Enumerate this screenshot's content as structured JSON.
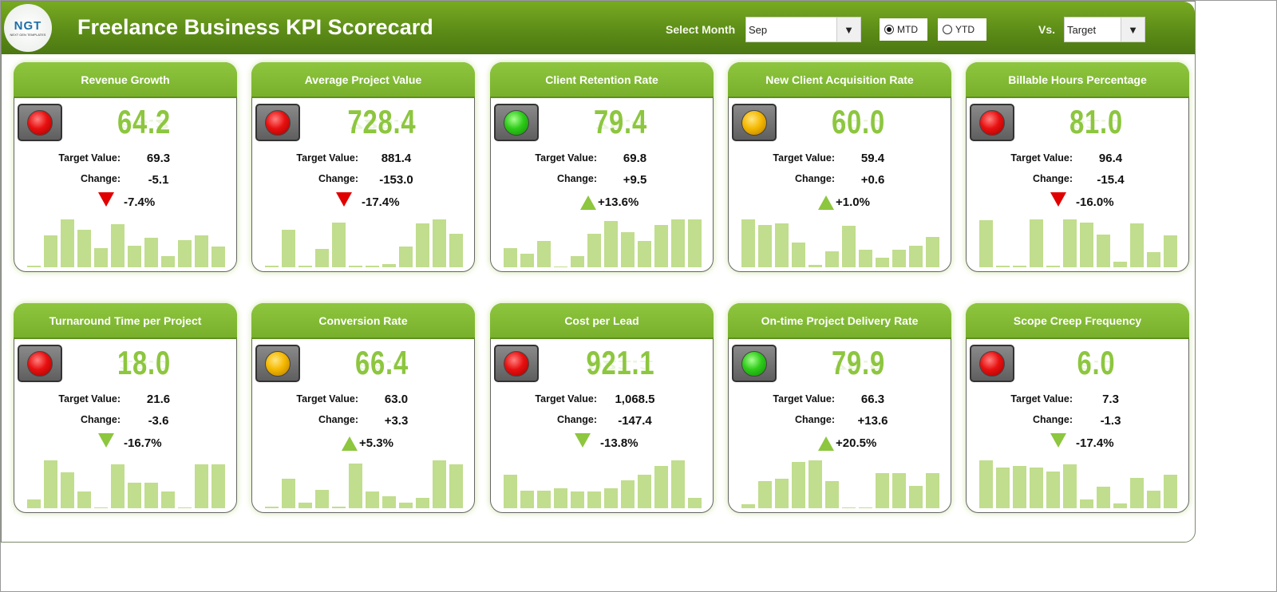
{
  "header": {
    "logo_text": "NGT",
    "logo_sub": "NEXT GEN TEMPLATES",
    "title": "Freelance Business KPI Scorecard",
    "select_month_label": "Select Month",
    "month_value": "Sep",
    "mtd_label": "MTD",
    "ytd_label": "YTD",
    "mode_selected": "MTD",
    "vs_label": "Vs.",
    "vs_value": "Target",
    "dropdown_icon": "triangle-down"
  },
  "labels": {
    "target": "Target Value:",
    "change": "Change:"
  },
  "colors": {
    "red": "#e81010",
    "amber": "#f5b800",
    "green": "#2ecc1a",
    "arrow_red": "#e00000",
    "arrow_green": "#8dc63f"
  },
  "cards": [
    {
      "title": "Revenue Growth",
      "value": "64.2",
      "target": "69.3",
      "change": "-5.1",
      "pct": "-7.4%",
      "light": "red",
      "arrow": "down",
      "arrow_color": "arrow_red",
      "trend": [
        2,
        38,
        57,
        45,
        23,
        51,
        26,
        35,
        13,
        32,
        38,
        25
      ]
    },
    {
      "title": "Average Project Value",
      "value": "728.4",
      "target": "881.4",
      "change": "-153.0",
      "pct": "-17.4%",
      "light": "red",
      "arrow": "down",
      "arrow_color": "arrow_red",
      "trend": [
        2,
        45,
        2,
        22,
        53,
        2,
        2,
        4,
        25,
        52,
        57,
        40
      ]
    },
    {
      "title": "Client Retention Rate",
      "value": "79.4",
      "target": "69.8",
      "change": "+9.5",
      "pct": "+13.6%",
      "light": "green",
      "arrow": "up",
      "arrow_color": "arrow_green",
      "trend": [
        23,
        16,
        31,
        1,
        13,
        40,
        55,
        42,
        31,
        50,
        57,
        57
      ]
    },
    {
      "title": "New Client Acquisition Rate",
      "value": "60.0",
      "target": "59.4",
      "change": "+0.6",
      "pct": "+1.0%",
      "light": "amber",
      "arrow": "up",
      "arrow_color": "arrow_green",
      "trend": [
        46,
        41,
        42,
        24,
        2,
        15,
        40,
        17,
        9,
        17,
        21,
        29
      ]
    },
    {
      "title": "Billable Hours Percentage",
      "value": "81.0",
      "target": "96.4",
      "change": "-15.4",
      "pct": "-16.0%",
      "light": "red",
      "arrow": "down",
      "arrow_color": "arrow_red",
      "trend": [
        50,
        2,
        2,
        51,
        2,
        51,
        48,
        35,
        6,
        47,
        16,
        34
      ]
    },
    {
      "title": "Turnaround Time per Project",
      "value": "18.0",
      "target": "21.6",
      "change": "-3.6",
      "pct": "-16.7%",
      "light": "red",
      "arrow": "down",
      "arrow_color": "arrow_green",
      "trend": [
        10,
        55,
        41,
        19,
        1,
        50,
        29,
        29,
        19,
        1,
        50,
        50
      ]
    },
    {
      "title": "Conversion Rate",
      "value": "66.4",
      "target": "63.0",
      "change": "+3.3",
      "pct": "+5.3%",
      "light": "amber",
      "arrow": "up",
      "arrow_color": "arrow_green",
      "trend": [
        2,
        35,
        7,
        22,
        2,
        53,
        20,
        14,
        7,
        12,
        57,
        52
      ]
    },
    {
      "title": "Cost per Lead",
      "value": "921.1",
      "target": "1,068.5",
      "change": "-147.4",
      "pct": "-13.8%",
      "light": "red",
      "arrow": "down",
      "arrow_color": "arrow_green",
      "trend": [
        40,
        21,
        21,
        24,
        20,
        20,
        24,
        33,
        40,
        50,
        57,
        12
      ]
    },
    {
      "title": "On-time Project Delivery Rate",
      "value": "79.9",
      "target": "66.3",
      "change": "+13.6",
      "pct": "+20.5%",
      "light": "green",
      "arrow": "up",
      "arrow_color": "arrow_green",
      "trend": [
        4,
        28,
        31,
        48,
        50,
        28,
        1,
        1,
        37,
        37,
        23,
        37
      ]
    },
    {
      "title": "Scope Creep Frequency",
      "value": "6.0",
      "target": "7.3",
      "change": "-1.3",
      "pct": "-17.4%",
      "light": "red",
      "arrow": "down",
      "arrow_color": "arrow_green",
      "trend": [
        57,
        48,
        50,
        48,
        44,
        52,
        10,
        26,
        6,
        36,
        21,
        40
      ]
    }
  ]
}
